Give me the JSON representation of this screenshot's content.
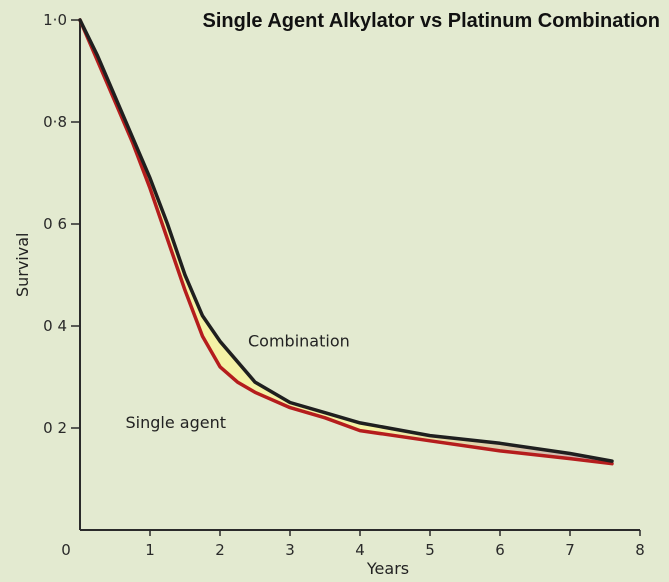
{
  "chart_data": {
    "type": "line",
    "title": "Single Agent Alkylator vs Platinum Combination",
    "xlabel": "Years",
    "ylabel": "Survival",
    "xlim": [
      0,
      8
    ],
    "ylim": [
      0,
      1.0
    ],
    "x_ticks": [
      "0",
      "1",
      "2",
      "3",
      "4",
      "5",
      "6",
      "7",
      "8"
    ],
    "y_ticks": [
      "0 2",
      "0 4",
      "0 6",
      "0·8",
      "1·0"
    ],
    "grid": false,
    "legend": "none",
    "series": [
      {
        "name": "Combination",
        "color": "#1f1f1f",
        "x": [
          0,
          0.25,
          0.5,
          0.75,
          1.0,
          1.25,
          1.5,
          1.75,
          2.0,
          2.25,
          2.5,
          3.0,
          3.5,
          4.0,
          5.0,
          6.0,
          7.0,
          7.6
        ],
        "y": [
          1.0,
          0.93,
          0.85,
          0.77,
          0.69,
          0.6,
          0.5,
          0.42,
          0.37,
          0.33,
          0.29,
          0.25,
          0.23,
          0.21,
          0.185,
          0.17,
          0.15,
          0.135
        ]
      },
      {
        "name": "Single agent",
        "color": "#b51d1d",
        "x": [
          0,
          0.25,
          0.5,
          0.75,
          1.0,
          1.25,
          1.5,
          1.75,
          2.0,
          2.25,
          2.5,
          3.0,
          3.5,
          4.0,
          5.0,
          6.0,
          7.0,
          7.6
        ],
        "y": [
          1.0,
          0.92,
          0.84,
          0.76,
          0.67,
          0.57,
          0.47,
          0.38,
          0.32,
          0.29,
          0.27,
          0.24,
          0.22,
          0.195,
          0.175,
          0.155,
          0.14,
          0.13
        ]
      }
    ],
    "annotations": [
      {
        "text": "Combination",
        "x": 2.4,
        "y": 0.36
      },
      {
        "text": "Single agent",
        "x": 0.65,
        "y": 0.2
      }
    ]
  },
  "colors": {
    "background": "#e3ead0",
    "band_fill": "#f4f2a6",
    "band_fill_late": "#c9aeb2",
    "axis": "#2a2a2a"
  }
}
